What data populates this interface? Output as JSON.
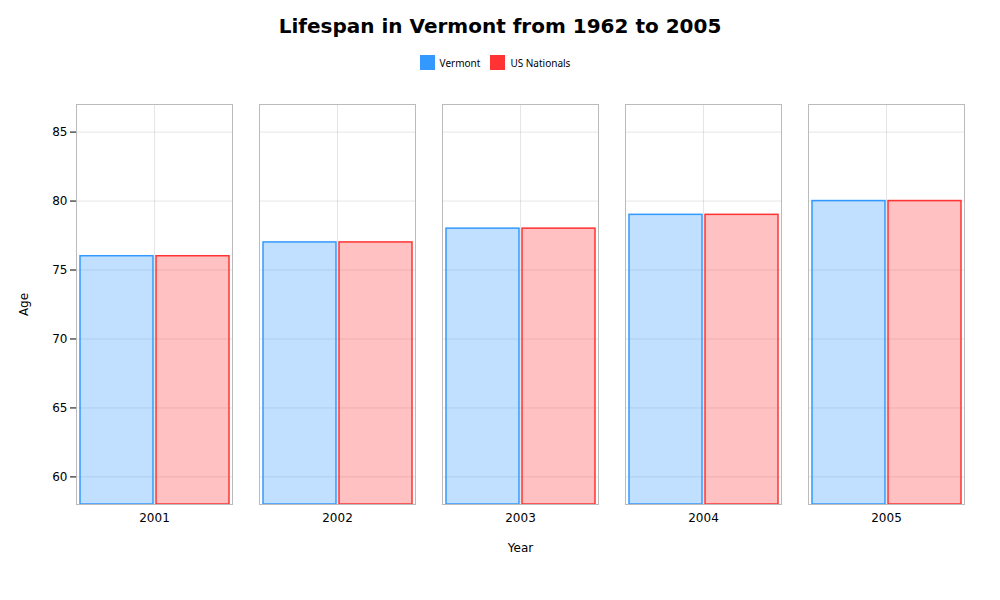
{
  "chart_data": {
    "type": "bar",
    "title": "Lifespan in Vermont from 1962 to 2005",
    "xlabel": "Year",
    "ylabel": "Age",
    "categories": [
      "2001",
      "2002",
      "2003",
      "2004",
      "2005"
    ],
    "series": [
      {
        "name": "Vermont",
        "color": "#3399ff",
        "values": [
          76,
          77,
          78,
          79,
          80
        ]
      },
      {
        "name": "US Nationals",
        "color": "#ff3333",
        "values": [
          76,
          77,
          78,
          79,
          80
        ]
      }
    ],
    "ylim": [
      58,
      87
    ],
    "yticks": [
      60,
      65,
      70,
      75,
      80,
      85
    ],
    "grid": true,
    "legend": "top"
  }
}
